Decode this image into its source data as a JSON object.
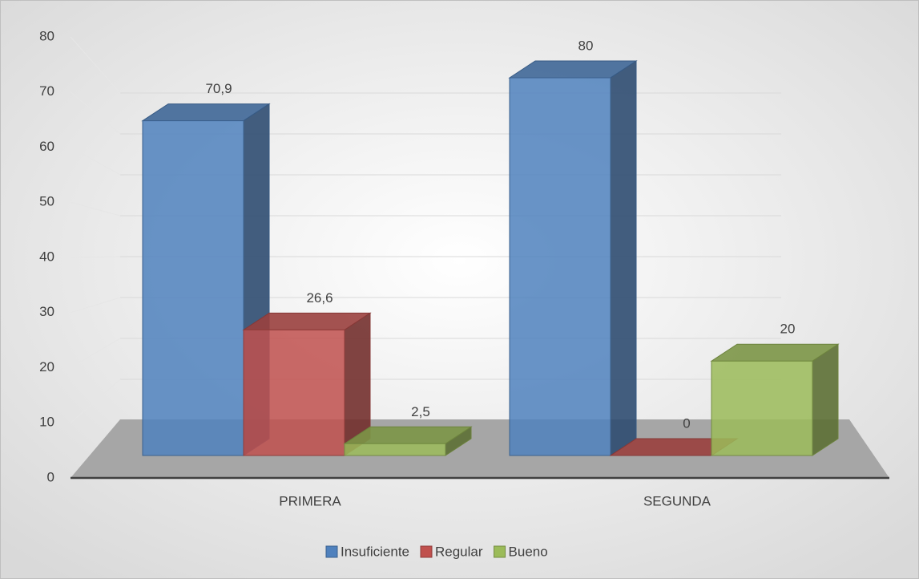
{
  "chart_data": {
    "type": "bar3d",
    "categories": [
      "PRIMERA",
      "SEGUNDA"
    ],
    "series": [
      {
        "name": "Insuficiente",
        "color": "#4f81bd",
        "values": [
          70.9,
          80
        ],
        "value_labels": [
          "70,9",
          "80"
        ]
      },
      {
        "name": "Regular",
        "color": "#c0504d",
        "values": [
          26.6,
          0
        ],
        "value_labels": [
          "26,6",
          "0"
        ]
      },
      {
        "name": "Bueno",
        "color": "#9bbb59",
        "values": [
          2.5,
          20
        ],
        "value_labels": [
          "2,5",
          "20"
        ]
      }
    ],
    "ylim": [
      0,
      80
    ],
    "yticks": [
      0,
      10,
      20,
      30,
      40,
      50,
      60,
      70,
      80
    ],
    "grid": true,
    "legend": "bottom"
  }
}
